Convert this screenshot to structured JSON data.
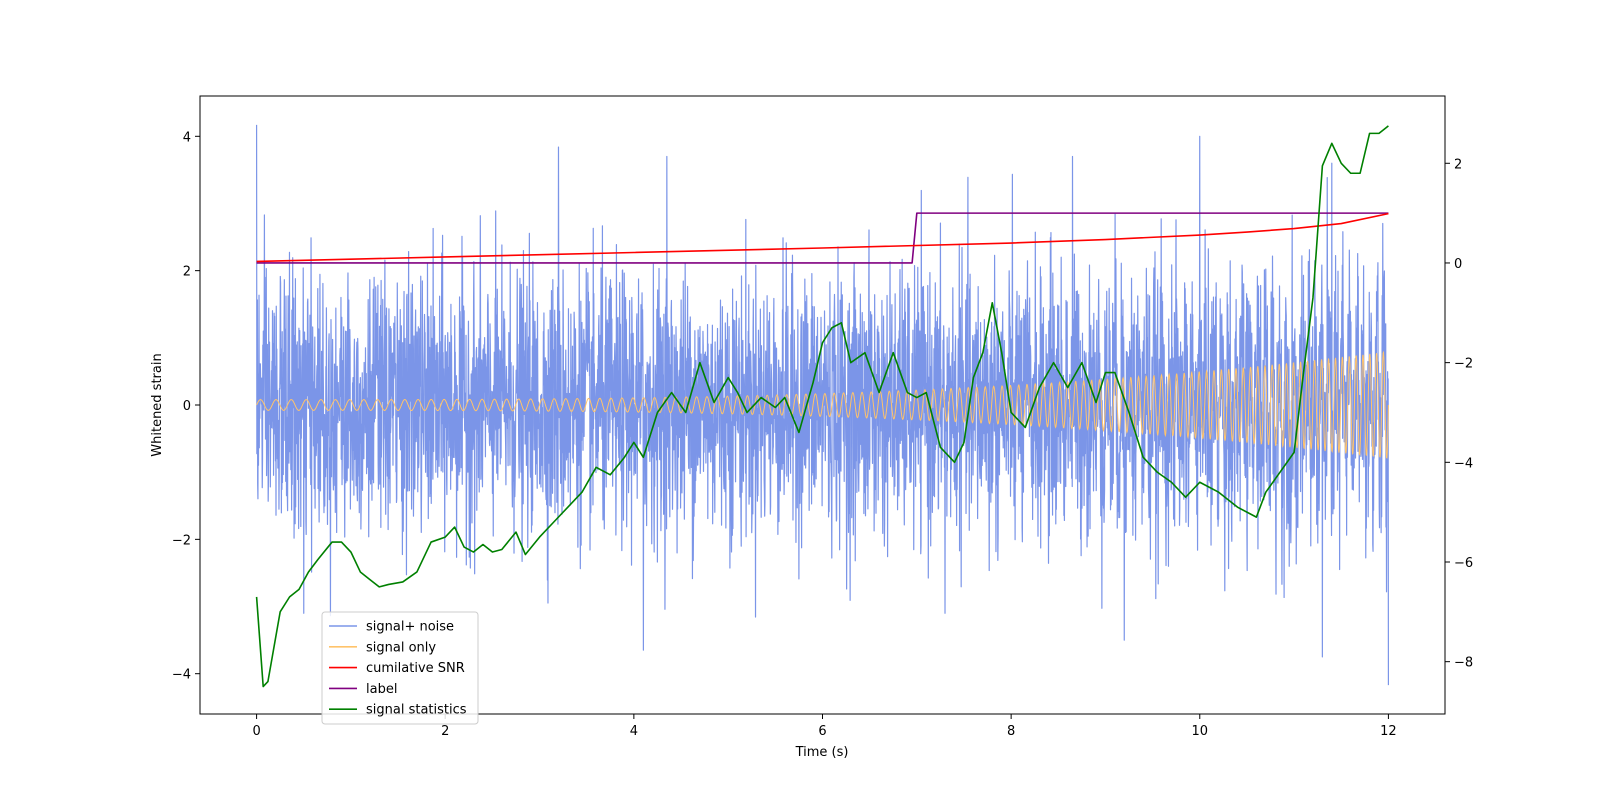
{
  "chart_data": {
    "type": "line",
    "title": "",
    "xlabel": "Time (s)",
    "ylabel": "Whitened strain",
    "y2label": "",
    "xlim": [
      -0.6,
      12.6
    ],
    "ylim": [
      -4.6,
      4.6
    ],
    "y2lim": [
      -9.05,
      3.35
    ],
    "xticks": [
      0,
      2,
      4,
      6,
      8,
      10,
      12
    ],
    "yticks": [
      -4,
      -2,
      0,
      2,
      4
    ],
    "y2ticks": [
      -8,
      -6,
      -4,
      -2,
      0,
      2
    ],
    "grid": false,
    "legend_position": "lower-left",
    "legend": [
      {
        "label": "signal+ noise",
        "color": "#7b95e8"
      },
      {
        "label": "signal only",
        "color": "#ffc36b"
      },
      {
        "label": "cumilative SNR",
        "color": "#ff0000"
      },
      {
        "label": "label",
        "color": "#800080"
      },
      {
        "label": "signal statistics",
        "color": "#008000"
      }
    ],
    "series": [
      {
        "name": "signal+ noise",
        "axis": "left",
        "color": "#7b95e8",
        "description": "white noise (sigma ~1.0) plus signal, sampled 0-12 s",
        "noise_sigma": 1.0,
        "x_range": [
          0,
          12
        ],
        "spikes": [
          {
            "x": 0.0,
            "y": 4.17
          },
          {
            "x": 3.2,
            "y": 3.84
          },
          {
            "x": 4.1,
            "y": -3.65
          },
          {
            "x": 4.35,
            "y": 3.7
          },
          {
            "x": 8.65,
            "y": 3.7
          },
          {
            "x": 10.0,
            "y": 4.0
          },
          {
            "x": 11.3,
            "y": -3.75
          },
          {
            "x": 11.4,
            "y": 3.6
          },
          {
            "x": 12.0,
            "y": -4.17
          },
          {
            "x": 0.5,
            "y": -3.1
          },
          {
            "x": 7.3,
            "y": -3.1
          },
          {
            "x": 9.2,
            "y": -3.5
          }
        ]
      },
      {
        "name": "signal only",
        "axis": "left",
        "color": "#ffc36b",
        "description": "chirp oscillation with growing amplitude",
        "amplitude_start": 0.08,
        "amplitude_end": 0.8,
        "freq_start_hz": 6.0,
        "freq_end_hz": 14.0,
        "x_range": [
          0,
          12
        ]
      },
      {
        "name": "cumilative SNR",
        "axis": "right",
        "color": "#ff0000",
        "x": [
          0,
          2,
          4,
          6,
          8,
          9,
          10,
          10.5,
          11,
          11.5,
          12
        ],
        "y": [
          0.03,
          0.12,
          0.21,
          0.3,
          0.4,
          0.47,
          0.56,
          0.62,
          0.69,
          0.79,
          0.99
        ]
      },
      {
        "name": "label",
        "axis": "right",
        "color": "#800080",
        "x": [
          0,
          6.95,
          7.0,
          12
        ],
        "y": [
          0,
          0,
          1,
          1
        ]
      },
      {
        "name": "signal statistics",
        "axis": "right",
        "color": "#008000",
        "x": [
          0.0,
          0.07,
          0.12,
          0.25,
          0.35,
          0.45,
          0.55,
          0.65,
          0.8,
          0.9,
          1.0,
          1.1,
          1.2,
          1.3,
          1.4,
          1.55,
          1.7,
          1.85,
          2.0,
          2.1,
          2.2,
          2.3,
          2.4,
          2.5,
          2.6,
          2.75,
          2.85,
          3.0,
          3.15,
          3.3,
          3.45,
          3.6,
          3.75,
          3.9,
          4.0,
          4.1,
          4.25,
          4.4,
          4.55,
          4.7,
          4.85,
          5.0,
          5.1,
          5.2,
          5.35,
          5.5,
          5.6,
          5.75,
          5.9,
          6.0,
          6.1,
          6.2,
          6.3,
          6.45,
          6.6,
          6.75,
          6.9,
          7.0,
          7.1,
          7.25,
          7.4,
          7.5,
          7.6,
          7.7,
          7.8,
          7.9,
          8.0,
          8.15,
          8.3,
          8.45,
          8.6,
          8.75,
          8.9,
          9.0,
          9.1,
          9.25,
          9.4,
          9.55,
          9.7,
          9.85,
          10.0,
          10.2,
          10.4,
          10.6,
          10.7,
          10.85,
          11.0,
          11.1,
          11.2,
          11.3,
          11.4,
          11.5,
          11.6,
          11.7,
          11.8,
          11.9,
          12.0
        ],
        "y": [
          -6.7,
          -8.5,
          -8.4,
          -7.0,
          -6.7,
          -6.55,
          -6.2,
          -5.95,
          -5.6,
          -5.6,
          -5.8,
          -6.2,
          -6.35,
          -6.5,
          -6.45,
          -6.4,
          -6.2,
          -5.6,
          -5.5,
          -5.3,
          -5.7,
          -5.8,
          -5.65,
          -5.8,
          -5.75,
          -5.4,
          -5.85,
          -5.5,
          -5.2,
          -4.9,
          -4.6,
          -4.1,
          -4.25,
          -3.9,
          -3.6,
          -3.9,
          -3.0,
          -2.6,
          -3.0,
          -2.0,
          -2.8,
          -2.3,
          -2.6,
          -3.0,
          -2.7,
          -2.9,
          -2.7,
          -3.4,
          -2.4,
          -1.6,
          -1.3,
          -1.2,
          -2.0,
          -1.8,
          -2.6,
          -1.8,
          -2.6,
          -2.7,
          -2.6,
          -3.7,
          -4.0,
          -3.6,
          -2.3,
          -1.8,
          -0.8,
          -1.8,
          -3.0,
          -3.3,
          -2.5,
          -2.0,
          -2.5,
          -2.0,
          -2.8,
          -2.2,
          -2.2,
          -3.0,
          -3.9,
          -4.2,
          -4.4,
          -4.7,
          -4.4,
          -4.6,
          -4.9,
          -5.1,
          -4.6,
          -4.2,
          -3.8,
          -2.2,
          -0.7,
          1.95,
          2.4,
          2.0,
          1.8,
          1.8,
          2.6,
          2.6,
          2.75
        ]
      }
    ]
  }
}
